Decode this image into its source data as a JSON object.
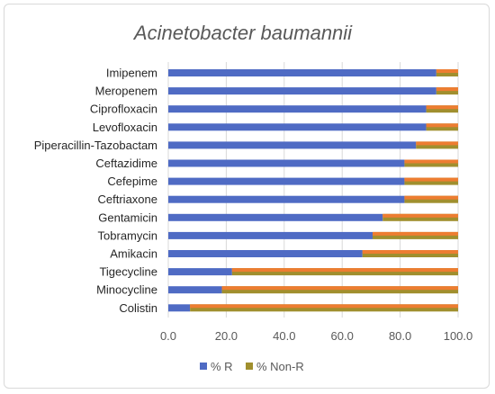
{
  "chart_data": {
    "type": "bar",
    "orientation": "horizontal",
    "stacked": true,
    "title": "Acinetobacter baumannii",
    "categories": [
      "Imipenem",
      "Meropenem",
      "Ciprofloxacin",
      "Levofloxacin",
      "Piperacillin-Tazobactam",
      "Ceftazidime",
      "Cefepime",
      "Ceftriaxone",
      "Gentamicin",
      "Tobramycin",
      "Amikacin",
      "Tigecycline",
      "Minocycline",
      "Colistin"
    ],
    "series": [
      {
        "name": "% R",
        "color": "#4f6bc4",
        "values": [
          92.5,
          92.5,
          89.0,
          89.0,
          85.5,
          81.5,
          81.5,
          81.5,
          74.0,
          70.5,
          67.0,
          22.0,
          18.5,
          7.5
        ]
      },
      {
        "name": "% Non-R",
        "color": "#a08f2e",
        "values": [
          7.5,
          7.5,
          11.0,
          11.0,
          14.5,
          18.5,
          18.5,
          18.5,
          26.0,
          29.5,
          33.0,
          78.0,
          81.5,
          92.5
        ]
      }
    ],
    "bar_top_color": "#ed7d31",
    "xlim": [
      0,
      100
    ],
    "xticks": [
      "0.0",
      "20.0",
      "40.0",
      "60.0",
      "80.0",
      "100.0"
    ],
    "grid": true,
    "legend_position": "bottom"
  }
}
